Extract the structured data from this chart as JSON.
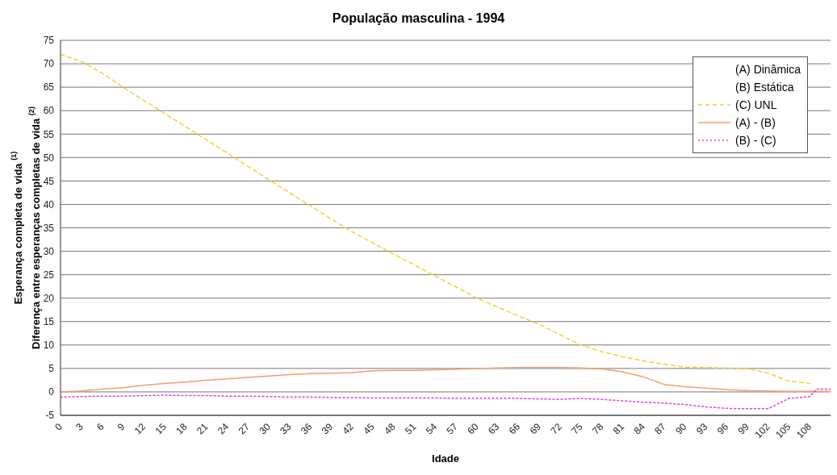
{
  "chart_data": {
    "type": "line",
    "title": "População masculina - 1994",
    "xlabel": "Idade",
    "ylabel": "Esperança completa de vida $^{(1)}$\nDiferença entre esperanças completas de vida $^{(2)}$",
    "xlim": [
      0,
      111
    ],
    "xticks": [
      0,
      3,
      6,
      9,
      12,
      15,
      18,
      21,
      24,
      27,
      30,
      33,
      36,
      39,
      42,
      45,
      48,
      51,
      54,
      57,
      60,
      63,
      66,
      69,
      72,
      75,
      78,
      81,
      84,
      87,
      90,
      93,
      96,
      99,
      102,
      105,
      108
    ],
    "ylim": [
      -5,
      75
    ],
    "yticks": [
      -5,
      0,
      5,
      10,
      15,
      20,
      25,
      30,
      35,
      40,
      45,
      50,
      55,
      60,
      65,
      70,
      75
    ],
    "grid": "y",
    "legend": "top right",
    "marker": "none",
    "series": [
      {
        "name": "(A) Dinâmica"
      },
      {
        "name": "(B) Estática"
      },
      {
        "name": "(C) UNL",
        "color": "#f2d23c",
        "line_style": "dashed",
        "x": [
          0,
          3,
          6,
          9,
          12,
          15,
          18,
          21,
          24,
          27,
          30,
          33,
          36,
          39,
          42,
          45,
          48,
          51,
          54,
          57,
          60,
          63,
          66,
          69,
          72,
          75,
          78,
          81,
          84,
          87,
          90,
          93,
          96,
          99,
          102,
          105,
          108
        ],
        "values": [
          72,
          70.5,
          68,
          65,
          62.2,
          59.4,
          56.6,
          53.8,
          51,
          48.1,
          45.3,
          42.5,
          39.7,
          36.9,
          34.2,
          31.8,
          29.4,
          27.1,
          24.7,
          22.4,
          20,
          18.1,
          16.2,
          14.4,
          12.2,
          10,
          8.6,
          7.5,
          6.6,
          5.9,
          5.3,
          5.2,
          5.1,
          5,
          4,
          2.3,
          1.8
        ]
      },
      {
        "name": "(A) - (B)",
        "color": "#f0a070",
        "line_style": "solid",
        "x": [
          0,
          3,
          6,
          9,
          12,
          15,
          18,
          21,
          24,
          27,
          30,
          33,
          36,
          39,
          42,
          45,
          48,
          51,
          54,
          57,
          60,
          63,
          66,
          69,
          72,
          75,
          78,
          81,
          84,
          87,
          90,
          93,
          96,
          99,
          102,
          105,
          108,
          111
        ],
        "values": [
          0,
          0.2,
          0.6,
          0.9,
          1.4,
          1.8,
          2.1,
          2.5,
          2.8,
          3.1,
          3.4,
          3.7,
          3.9,
          4,
          4.1,
          4.5,
          4.6,
          4.6,
          4.7,
          4.8,
          5,
          5.1,
          5.2,
          5.2,
          5.2,
          5.1,
          4.9,
          4.3,
          3.2,
          1.6,
          1.1,
          0.8,
          0.5,
          0.3,
          0.2,
          0.1,
          0.1,
          0.1
        ]
      },
      {
        "name": "(B) - (C)",
        "color": "#e040e0",
        "line_style": "dotted",
        "x": [
          0,
          3,
          6,
          9,
          12,
          15,
          18,
          21,
          24,
          27,
          30,
          33,
          36,
          39,
          42,
          45,
          48,
          51,
          54,
          57,
          60,
          63,
          66,
          69,
          72,
          75,
          78,
          81,
          84,
          87,
          90,
          93,
          96,
          99,
          102,
          105,
          108,
          109,
          111
        ],
        "values": [
          -1.1,
          -1,
          -0.9,
          -0.9,
          -0.8,
          -0.7,
          -0.8,
          -0.8,
          -0.9,
          -0.9,
          -1,
          -1.1,
          -1.1,
          -1.2,
          -1.2,
          -1.3,
          -1.3,
          -1.3,
          -1.3,
          -1.4,
          -1.4,
          -1.4,
          -1.4,
          -1.5,
          -1.6,
          -1.4,
          -1.6,
          -1.9,
          -2.2,
          -2.4,
          -2.7,
          -3.2,
          -3.5,
          -3.6,
          -3.6,
          -1.4,
          -1,
          0.6,
          0.6
        ]
      }
    ]
  }
}
